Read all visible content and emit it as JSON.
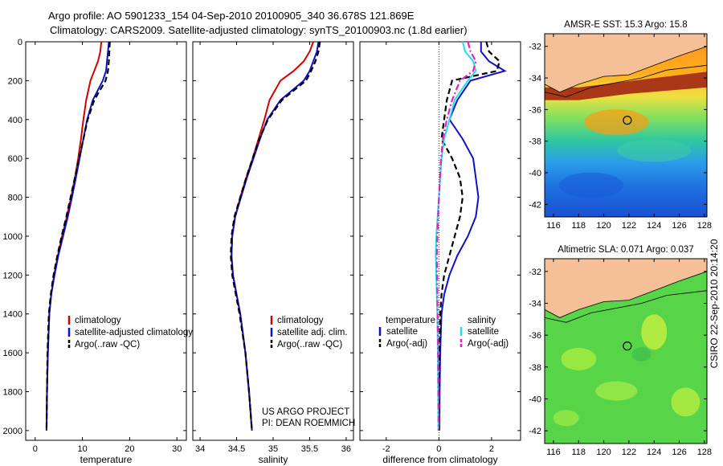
{
  "header": {
    "line1": "Argo profile: AO 5901233_154 04-Sep-2010 20100905_340 36.678S 121.869E",
    "line2": "Climatology: CARS2009. Satellite-adjusted climatology: synTS_20100903.nc (1.8d earlier)"
  },
  "footer": {
    "project": "US ARGO PROJECT",
    "pi": "PI: DEAN ROEMMICH",
    "timestamp": "CSIRO 22-Sep-2010 20:14:20"
  },
  "colors": {
    "climatology": "#d40000",
    "satellite": "#1010c8",
    "argo": "#000000",
    "salinity_satellite": "#20e0e8",
    "salinity_argo": "#e020c8",
    "land": "#f5c098"
  },
  "maps": {
    "sst": {
      "title": "AMSR-E SST: 15.3 Argo: 15.8",
      "lat_ticks": [
        "-32",
        "-34",
        "-36",
        "-38",
        "-40",
        "-42"
      ],
      "lon_ticks": [
        "116",
        "118",
        "120",
        "122",
        "124",
        "126",
        "128"
      ]
    },
    "sla": {
      "title": "Altimetric SLA: 0.071 Argo: 0.037",
      "lat_ticks": [
        "-32",
        "-34",
        "-36",
        "-38",
        "-40",
        "-42"
      ],
      "lon_ticks": [
        "116",
        "118",
        "120",
        "122",
        "124",
        "126",
        "128"
      ]
    },
    "float_lon": 121.869,
    "float_lat": -36.678
  },
  "chart_data": [
    {
      "type": "line",
      "id": "temperature",
      "xlabel": "temperature",
      "ylabel": "",
      "xlim": [
        -2,
        32
      ],
      "ylim": [
        2050,
        0
      ],
      "x_ticks": [
        0,
        10,
        20,
        30
      ],
      "y_ticks": [
        0,
        200,
        400,
        600,
        800,
        1000,
        1200,
        1400,
        1600,
        1800,
        2000
      ],
      "depth": [
        0,
        50,
        100,
        150,
        200,
        300,
        400,
        500,
        600,
        700,
        800,
        900,
        1000,
        1100,
        1200,
        1300,
        1400,
        1600,
        1800,
        2000
      ],
      "legend": {
        "items": [
          "climatology",
          "satellite-adjusted climatology",
          "Argo(..raw -QC)"
        ]
      },
      "series": [
        {
          "name": "climatology",
          "style": "solid",
          "color": "#d40000",
          "values": [
            14.0,
            13.8,
            13.3,
            12.5,
            11.7,
            10.8,
            10.2,
            9.7,
            9.1,
            8.4,
            7.6,
            6.7,
            5.7,
            4.8,
            4.0,
            3.4,
            3.0,
            2.7,
            2.5,
            2.4
          ]
        },
        {
          "name": "satellite-adjusted climatology",
          "style": "solid",
          "color": "#1010c8",
          "values": [
            15.6,
            15.4,
            15.2,
            15.0,
            14.3,
            12.2,
            11.0,
            10.2,
            9.4,
            8.6,
            7.8,
            6.9,
            5.9,
            4.9,
            4.1,
            3.4,
            3.0,
            2.7,
            2.5,
            2.4
          ]
        },
        {
          "name": "Argo(..raw -QC)",
          "style": "dashed",
          "color": "#000000",
          "values": [
            15.8,
            15.7,
            15.6,
            15.4,
            14.9,
            12.5,
            11.1,
            10.2,
            9.3,
            8.4,
            7.5,
            6.6,
            5.6,
            4.7,
            3.9,
            3.3,
            2.9,
            2.6,
            2.5,
            2.4
          ]
        }
      ]
    },
    {
      "type": "line",
      "id": "salinity",
      "xlabel": "salinity",
      "ylabel": "",
      "xlim": [
        33.9,
        36.1
      ],
      "ylim": [
        2050,
        0
      ],
      "x_ticks": [
        34,
        34.5,
        35,
        35.5,
        36
      ],
      "depth": [
        0,
        50,
        100,
        150,
        200,
        300,
        400,
        500,
        600,
        700,
        800,
        900,
        1000,
        1100,
        1200,
        1300,
        1400,
        1600,
        1800,
        2000
      ],
      "legend": {
        "items": [
          "climatology",
          "satellite adj. clim.",
          "Argo(..raw -QC)"
        ]
      },
      "series": [
        {
          "name": "climatology",
          "style": "solid",
          "color": "#d40000",
          "values": [
            35.55,
            35.5,
            35.42,
            35.28,
            35.1,
            34.95,
            34.88,
            34.8,
            34.72,
            34.63,
            34.55,
            34.48,
            34.44,
            34.43,
            34.45,
            34.5,
            34.55,
            34.62,
            34.67,
            34.71
          ]
        },
        {
          "name": "satellite adj. clim.",
          "style": "solid",
          "color": "#1010c8",
          "values": [
            35.62,
            35.6,
            35.55,
            35.5,
            35.42,
            35.1,
            34.92,
            34.82,
            34.73,
            34.64,
            34.56,
            34.48,
            34.44,
            34.43,
            34.45,
            34.5,
            34.55,
            34.62,
            34.67,
            34.71
          ]
        },
        {
          "name": "Argo(..raw -QC)",
          "style": "dashed",
          "color": "#000000",
          "values": [
            35.64,
            35.62,
            35.58,
            35.52,
            35.45,
            35.12,
            34.93,
            34.81,
            34.72,
            34.63,
            34.55,
            34.47,
            34.43,
            34.42,
            34.44,
            34.49,
            34.54,
            34.62,
            34.67,
            34.71
          ]
        }
      ]
    },
    {
      "type": "line",
      "id": "difference",
      "xlabel": "difference from climatology",
      "ylabel": "",
      "xlim": [
        -3,
        3.1
      ],
      "ylim": [
        2050,
        0
      ],
      "x_ticks": [
        -2,
        0,
        2
      ],
      "depth": [
        0,
        50,
        100,
        150,
        200,
        300,
        400,
        500,
        600,
        700,
        800,
        900,
        1000,
        1100,
        1200,
        1300,
        1400,
        1600,
        1800,
        2000
      ],
      "zero_line": 0,
      "legend": {
        "headers": [
          "temperature",
          "salinity"
        ],
        "items": [
          "satellite",
          "Argo(-adj)",
          "satellite",
          "Argo(-adj)"
        ]
      },
      "series": [
        {
          "name": "temperature satellite",
          "style": "solid",
          "color": "#1010c8",
          "values": [
            1.6,
            1.6,
            1.9,
            2.5,
            1.2,
            0.7,
            0.4,
            0.9,
            1.3,
            1.4,
            1.5,
            1.4,
            1.1,
            0.7,
            0.4,
            0.2,
            0.1,
            0.05,
            0.03,
            0.02
          ]
        },
        {
          "name": "temperature Argo(-adj)",
          "style": "dashed",
          "color": "#000000",
          "values": [
            1.8,
            1.9,
            2.3,
            2.2,
            0.5,
            0.3,
            0.2,
            0.1,
            0.5,
            0.8,
            0.9,
            0.8,
            0.6,
            0.4,
            0.2,
            0.1,
            0.05,
            0.02,
            0.01,
            0.0
          ]
        },
        {
          "name": "salinity satellite",
          "style": "solid",
          "color": "#20e0e8",
          "values": [
            0.9,
            1.0,
            1.3,
            1.4,
            1.1,
            0.6,
            0.4,
            0.2,
            0.1,
            0.05,
            0.0,
            -0.05,
            -0.1,
            -0.12,
            -0.1,
            -0.08,
            -0.06,
            -0.04,
            -0.03,
            -0.02
          ]
        },
        {
          "name": "salinity Argo(-adj)",
          "style": "dashdot",
          "color": "#e020c8",
          "values": [
            1.1,
            1.2,
            1.4,
            1.3,
            0.8,
            0.5,
            0.3,
            0.15,
            0.08,
            0.04,
            0.0,
            -0.03,
            -0.06,
            -0.08,
            -0.07,
            -0.06,
            -0.05,
            -0.03,
            -0.02,
            -0.01
          ]
        }
      ]
    }
  ]
}
